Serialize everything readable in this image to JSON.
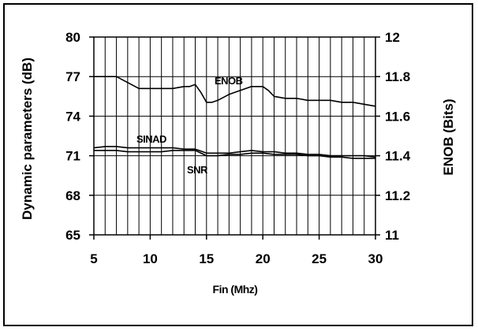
{
  "chart_data": {
    "type": "line",
    "title": "",
    "xlabel": "Fin (Mhz)",
    "ylabel_left": "Dynamic parameters (dB)",
    "ylabel_right": "ENOB (Bits)",
    "xlim": [
      5,
      30
    ],
    "ylim_left": [
      65,
      80
    ],
    "ylim_right": [
      11,
      12
    ],
    "x_ticks": [
      "5",
      "10",
      "15",
      "20",
      "25",
      "30"
    ],
    "y_left_ticks": [
      "65",
      "68",
      "71",
      "74",
      "77",
      "80"
    ],
    "y_right_ticks": [
      "11",
      "11.2",
      "11.4",
      "11.6",
      "11.8",
      "12"
    ],
    "grid": true,
    "series": [
      {
        "name": "ENOB",
        "axis": "right",
        "x": [
          5,
          6,
          7,
          8,
          9,
          10,
          11,
          12,
          13,
          13.5,
          14,
          14.5,
          15,
          15.5,
          16,
          17,
          18,
          19,
          20,
          20.5,
          21,
          22,
          23,
          24,
          25,
          26,
          27,
          28,
          29,
          30
        ],
        "y": [
          11.8,
          11.8,
          11.8,
          11.77,
          11.74,
          11.74,
          11.74,
          11.74,
          11.75,
          11.75,
          11.76,
          11.72,
          11.67,
          11.67,
          11.68,
          11.71,
          11.73,
          11.75,
          11.75,
          11.73,
          11.7,
          11.69,
          11.69,
          11.68,
          11.68,
          11.68,
          11.67,
          11.67,
          11.66,
          11.65
        ]
      },
      {
        "name": "SINAD",
        "axis": "left",
        "x": [
          5,
          6,
          7,
          8,
          9,
          10,
          11,
          12,
          13,
          14,
          15,
          16,
          17,
          18,
          19,
          20,
          21,
          22,
          23,
          24,
          25,
          26,
          27,
          28,
          29,
          30
        ],
        "y": [
          71.6,
          71.7,
          71.7,
          71.6,
          71.6,
          71.6,
          71.6,
          71.6,
          71.5,
          71.5,
          71.2,
          71.2,
          71.2,
          71.3,
          71.4,
          71.3,
          71.3,
          71.2,
          71.2,
          71.1,
          71.1,
          71.0,
          71.0,
          71.0,
          71.0,
          70.9
        ]
      },
      {
        "name": "SNR",
        "axis": "left",
        "x": [
          5,
          6,
          7,
          8,
          9,
          10,
          11,
          12,
          13,
          14,
          15,
          16,
          17,
          18,
          19,
          20,
          21,
          22,
          23,
          24,
          25,
          26,
          27,
          28,
          29,
          30
        ],
        "y": [
          71.4,
          71.4,
          71.4,
          71.3,
          71.3,
          71.3,
          71.3,
          71.4,
          71.4,
          71.4,
          71.0,
          71.0,
          71.1,
          71.1,
          71.2,
          71.2,
          71.1,
          71.1,
          71.1,
          71.0,
          71.0,
          70.9,
          70.9,
          70.8,
          70.8,
          70.8
        ]
      }
    ]
  }
}
